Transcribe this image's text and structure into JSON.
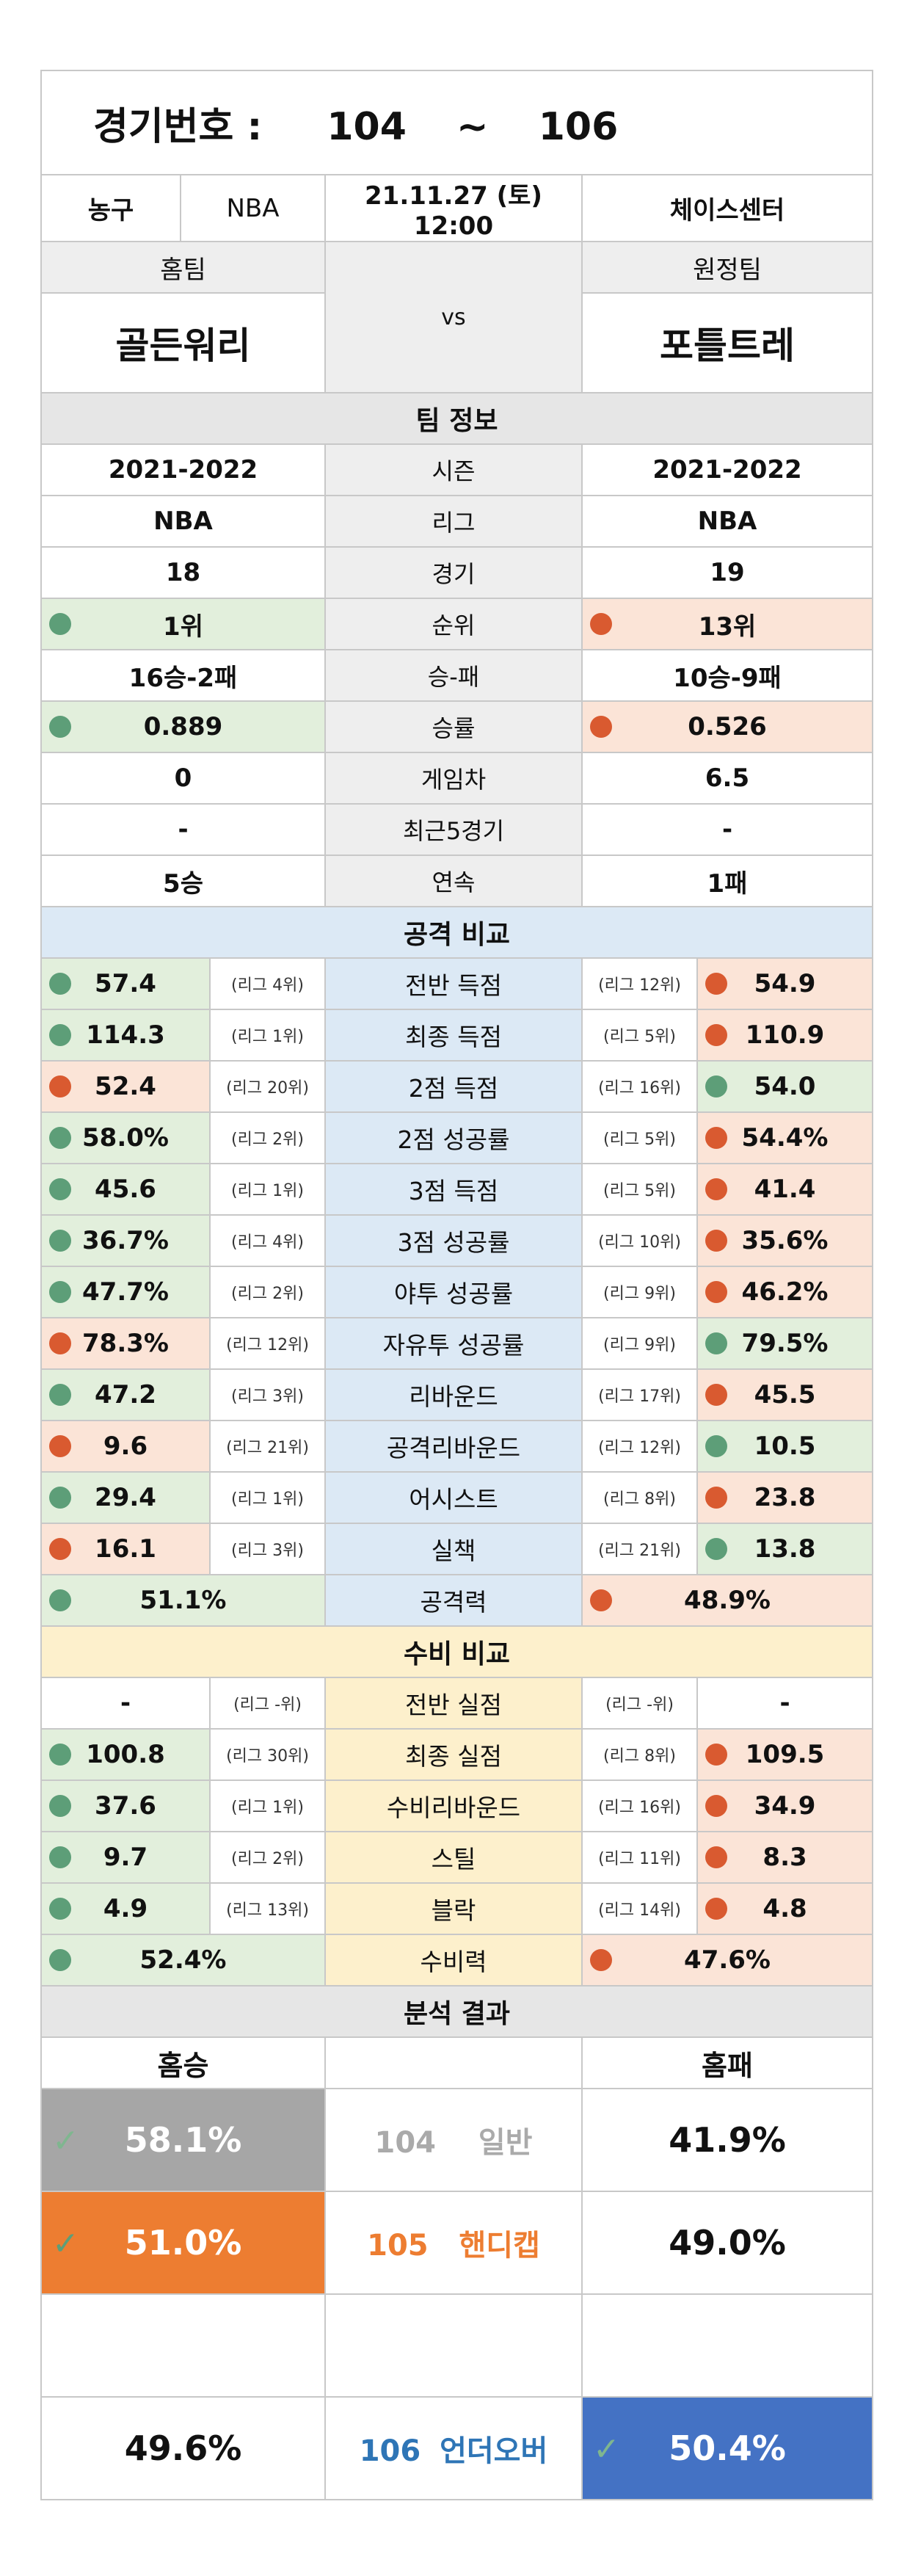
{
  "header": {
    "label": "경기번호 :",
    "from": "104",
    "tilde": "~",
    "to": "106"
  },
  "info": {
    "sport": "농구",
    "league": "NBA",
    "datetime": "21.11.27 (토) 12:00",
    "venue": "체이스센터"
  },
  "teams": {
    "home_label": "홈팀",
    "away_label": "원정팀",
    "vs": "vs",
    "home": "골든워리",
    "away": "포틀트레"
  },
  "team_info": {
    "title": "팀 정보",
    "rows": [
      {
        "home": "2021-2022",
        "label": "시즌",
        "away": "2021-2022"
      },
      {
        "home": "NBA",
        "label": "리그",
        "away": "NBA"
      },
      {
        "home": "18",
        "label": "경기",
        "away": "19"
      },
      {
        "home": "1위",
        "label": "순위",
        "away": "13위"
      },
      {
        "home": "16승-2패",
        "label": "승-패",
        "away": "10승-9패"
      },
      {
        "home": "0.889",
        "label": "승률",
        "away": "0.526"
      },
      {
        "home": "0",
        "label": "게임차",
        "away": "6.5"
      },
      {
        "home": "-",
        "label": "최근5경기",
        "away": "-"
      },
      {
        "home": "5승",
        "label": "연속",
        "away": "1패"
      }
    ]
  },
  "attack": {
    "title": "공격 비교",
    "rows": [
      {
        "home": "57.4",
        "home_rank": "(리그 4위)",
        "label": "전반 득점",
        "away_rank": "(리그 12위)",
        "away": "54.9"
      },
      {
        "home": "114.3",
        "home_rank": "(리그 1위)",
        "label": "최종 득점",
        "away_rank": "(리그 5위)",
        "away": "110.9"
      },
      {
        "home": "52.4",
        "home_rank": "(리그 20위)",
        "label": "2점 득점",
        "away_rank": "(리그 16위)",
        "away": "54.0"
      },
      {
        "home": "58.0%",
        "home_rank": "(리그 2위)",
        "label": "2점 성공률",
        "away_rank": "(리그 5위)",
        "away": "54.4%"
      },
      {
        "home": "45.6",
        "home_rank": "(리그 1위)",
        "label": "3점 득점",
        "away_rank": "(리그 5위)",
        "away": "41.4"
      },
      {
        "home": "36.7%",
        "home_rank": "(리그 4위)",
        "label": "3점 성공률",
        "away_rank": "(리그 10위)",
        "away": "35.6%"
      },
      {
        "home": "47.7%",
        "home_rank": "(리그 2위)",
        "label": "야투 성공률",
        "away_rank": "(리그 9위)",
        "away": "46.2%"
      },
      {
        "home": "78.3%",
        "home_rank": "(리그 12위)",
        "label": "자유투 성공률",
        "away_rank": "(리그 9위)",
        "away": "79.5%"
      },
      {
        "home": "47.2",
        "home_rank": "(리그 3위)",
        "label": "리바운드",
        "away_rank": "(리그 17위)",
        "away": "45.5"
      },
      {
        "home": "9.6",
        "home_rank": "(리그 21위)",
        "label": "공격리바운드",
        "away_rank": "(리그 12위)",
        "away": "10.5"
      },
      {
        "home": "29.4",
        "home_rank": "(리그 1위)",
        "label": "어시스트",
        "away_rank": "(리그 8위)",
        "away": "23.8"
      },
      {
        "home": "16.1",
        "home_rank": "(리그 3위)",
        "label": "실책",
        "away_rank": "(리그 21위)",
        "away": "13.8"
      }
    ],
    "power": {
      "home": "51.1%",
      "label": "공격력",
      "away": "48.9%"
    }
  },
  "defense": {
    "title": "수비 비교",
    "rows": [
      {
        "home": "-",
        "home_rank": "(리그 -위)",
        "label": "전반 실점",
        "away_rank": "(리그 -위)",
        "away": "-"
      },
      {
        "home": "100.8",
        "home_rank": "(리그 30위)",
        "label": "최종 실점",
        "away_rank": "(리그 8위)",
        "away": "109.5"
      },
      {
        "home": "37.6",
        "home_rank": "(리그 1위)",
        "label": "수비리바운드",
        "away_rank": "(리그 16위)",
        "away": "34.9"
      },
      {
        "home": "9.7",
        "home_rank": "(리그 2위)",
        "label": "스틸",
        "away_rank": "(리그 11위)",
        "away": "8.3"
      },
      {
        "home": "4.9",
        "home_rank": "(리그 13위)",
        "label": "블락",
        "away_rank": "(리그 14위)",
        "away": "4.8"
      }
    ],
    "power": {
      "home": "52.4%",
      "label": "수비력",
      "away": "47.6%"
    }
  },
  "analysis": {
    "title": "분석 결과",
    "home_label": "홈승",
    "away_label": "홈패",
    "normal": {
      "home": "58.1%",
      "code": "104",
      "name": "일반",
      "away": "41.9%"
    },
    "handicap": {
      "home": "51.0%",
      "code": "105",
      "name": "핸디캡",
      "away": "49.0%"
    },
    "underover": {
      "home": "49.6%",
      "code": "106",
      "name": "언더오버",
      "away": "50.4%"
    }
  },
  "colors": {
    "green": "#5d9e78",
    "red": "#d95a30",
    "green_bg": "#e2efdc",
    "red_bg": "#fbe4d7",
    "attack_bg": "#dce9f5",
    "defense_bg": "#fdf0cc",
    "orange": "#ed7d31",
    "blue": "#4472c4",
    "grey": "#a6a6a6"
  },
  "icons": {
    "check": "check-icon",
    "dot_green": "green-dot-icon",
    "dot_red": "red-dot-icon"
  }
}
